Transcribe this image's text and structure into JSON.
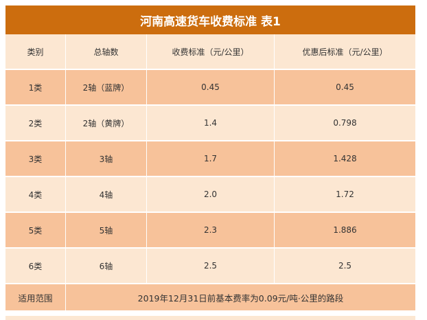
{
  "title": "河南高速货车收费标准 表1",
  "headers": [
    "类别",
    "总轴数",
    "收费标准（元/公里）",
    "优惠后标准（元/公里）"
  ],
  "rows": [
    [
      "1类",
      "2轴（蓝牌）",
      "0.45",
      "0.45"
    ],
    [
      "2类",
      "2轴（黄牌）",
      "1.4",
      "0.798"
    ],
    [
      "3类",
      "3轴",
      "1.7",
      "1.428"
    ],
    [
      "4类",
      "4轴",
      "2.0",
      "1.72"
    ],
    [
      "5类",
      "5轴",
      "2.3",
      "1.886"
    ],
    [
      "6类",
      "6轴",
      "2.5",
      "2.5"
    ]
  ],
  "scope": {
    "label": "适用范围",
    "text": "2019年12月31日前基本费率为0.09元/吨·公里的路段"
  },
  "colors": {
    "title_bg": "#cc6d0e",
    "row_dark": "#f7c29a",
    "row_light": "#fce7d2"
  }
}
